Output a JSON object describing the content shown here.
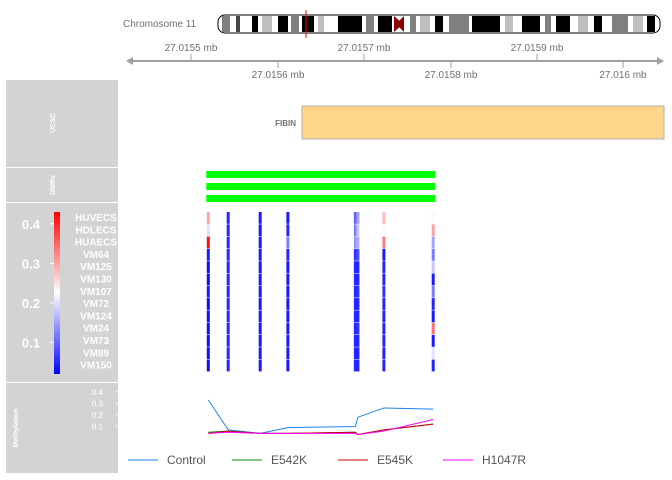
{
  "ideogram": {
    "title": "Chromosome 11"
  },
  "axis": {
    "top_ticks": [
      "27.0155 mb",
      "27.0157 mb",
      "27.0159 mb"
    ],
    "bottom_ticks": [
      "27.0156 mb",
      "27.0158 mb",
      "27.016 mb"
    ]
  },
  "tracks": {
    "ucsc": "UCSC",
    "dmrs": "DMRs",
    "heatmap_scale": [
      "0.4",
      "0.3",
      "0.2",
      "0.1"
    ],
    "methylation": "Methylation",
    "methylation_scale": [
      "0.4",
      "0.3",
      "0.2",
      "0.1"
    ]
  },
  "gene": {
    "name": "FIBIN",
    "color": "#FFD58A"
  },
  "colors": {
    "sidebar": "#D3D3D3",
    "dmr": "#00FF00",
    "high": "#FF0000",
    "mid": "#FFFFFF",
    "low": "#0000FF"
  },
  "chart_data": {
    "type": "line",
    "region": {
      "start_mb": 27.01549,
      "end_mb": 27.01601
    },
    "samples": [
      "HUVECS",
      "HDLECS",
      "HUAECS",
      "VM64",
      "VM125",
      "VM130",
      "VM107",
      "VM72",
      "VM124",
      "VM24",
      "VM73",
      "VM89",
      "VM150"
    ],
    "dmr_count": 3,
    "cpg_positions_mb": [
      27.01552,
      27.015543,
      27.01558,
      27.015612,
      27.01569,
      27.015693,
      27.015723,
      27.01578
    ],
    "heatmap_values": [
      [
        0.3,
        0.05,
        0.04,
        0.04,
        0.1,
        0.15,
        0.28,
        0.22
      ],
      [
        0.2,
        0.05,
        0.04,
        0.05,
        0.12,
        0.18,
        0.22,
        0.3
      ],
      [
        0.42,
        0.05,
        0.04,
        0.12,
        0.14,
        0.16,
        0.33,
        0.15
      ],
      [
        0.04,
        0.05,
        0.04,
        0.05,
        0.06,
        0.08,
        0.04,
        0.12
      ],
      [
        0.03,
        0.05,
        0.04,
        0.04,
        0.05,
        0.05,
        0.05,
        0.18
      ],
      [
        0.03,
        0.05,
        0.04,
        0.04,
        0.05,
        0.05,
        0.05,
        0.04
      ],
      [
        0.04,
        0.05,
        0.04,
        0.04,
        0.05,
        0.06,
        0.06,
        0.12
      ],
      [
        0.03,
        0.05,
        0.04,
        0.04,
        0.05,
        0.05,
        0.05,
        0.05
      ],
      [
        0.03,
        0.05,
        0.04,
        0.04,
        0.05,
        0.05,
        0.05,
        0.04
      ],
      [
        0.03,
        0.05,
        0.04,
        0.04,
        0.05,
        0.06,
        0.05,
        0.34
      ],
      [
        0.03,
        0.05,
        0.04,
        0.04,
        0.05,
        0.05,
        0.05,
        0.04
      ],
      [
        0.03,
        0.05,
        0.04,
        0.04,
        0.05,
        0.05,
        0.05,
        0.2
      ],
      [
        0.03,
        0.05,
        0.04,
        0.04,
        0.05,
        0.05,
        0.05,
        0.05
      ]
    ],
    "heatmap_range": [
      0.02,
      0.43
    ],
    "ylim": [
      0,
      0.45
    ],
    "x": [
      27.01552,
      27.015543,
      27.01558,
      27.015612,
      27.01569,
      27.015693,
      27.015723,
      27.01578
    ],
    "series": [
      {
        "name": "Control",
        "color": "#1C86EE",
        "values": [
          0.33,
          0.07,
          0.04,
          0.09,
          0.1,
          0.18,
          0.26,
          0.25
        ]
      },
      {
        "name": "E542K",
        "color": "#008B00",
        "values": [
          0.05,
          0.06,
          0.04,
          0.04,
          0.05,
          0.03,
          0.07,
          0.12
        ]
      },
      {
        "name": "E545K",
        "color": "#CD0000",
        "values": [
          0.04,
          0.06,
          0.04,
          0.04,
          0.05,
          0.03,
          0.07,
          0.12
        ]
      },
      {
        "name": "H1047R",
        "color": "#FF00FF",
        "values": [
          0.04,
          0.05,
          0.04,
          0.04,
          0.04,
          0.03,
          0.06,
          0.16
        ]
      }
    ],
    "legend": "bottom"
  }
}
